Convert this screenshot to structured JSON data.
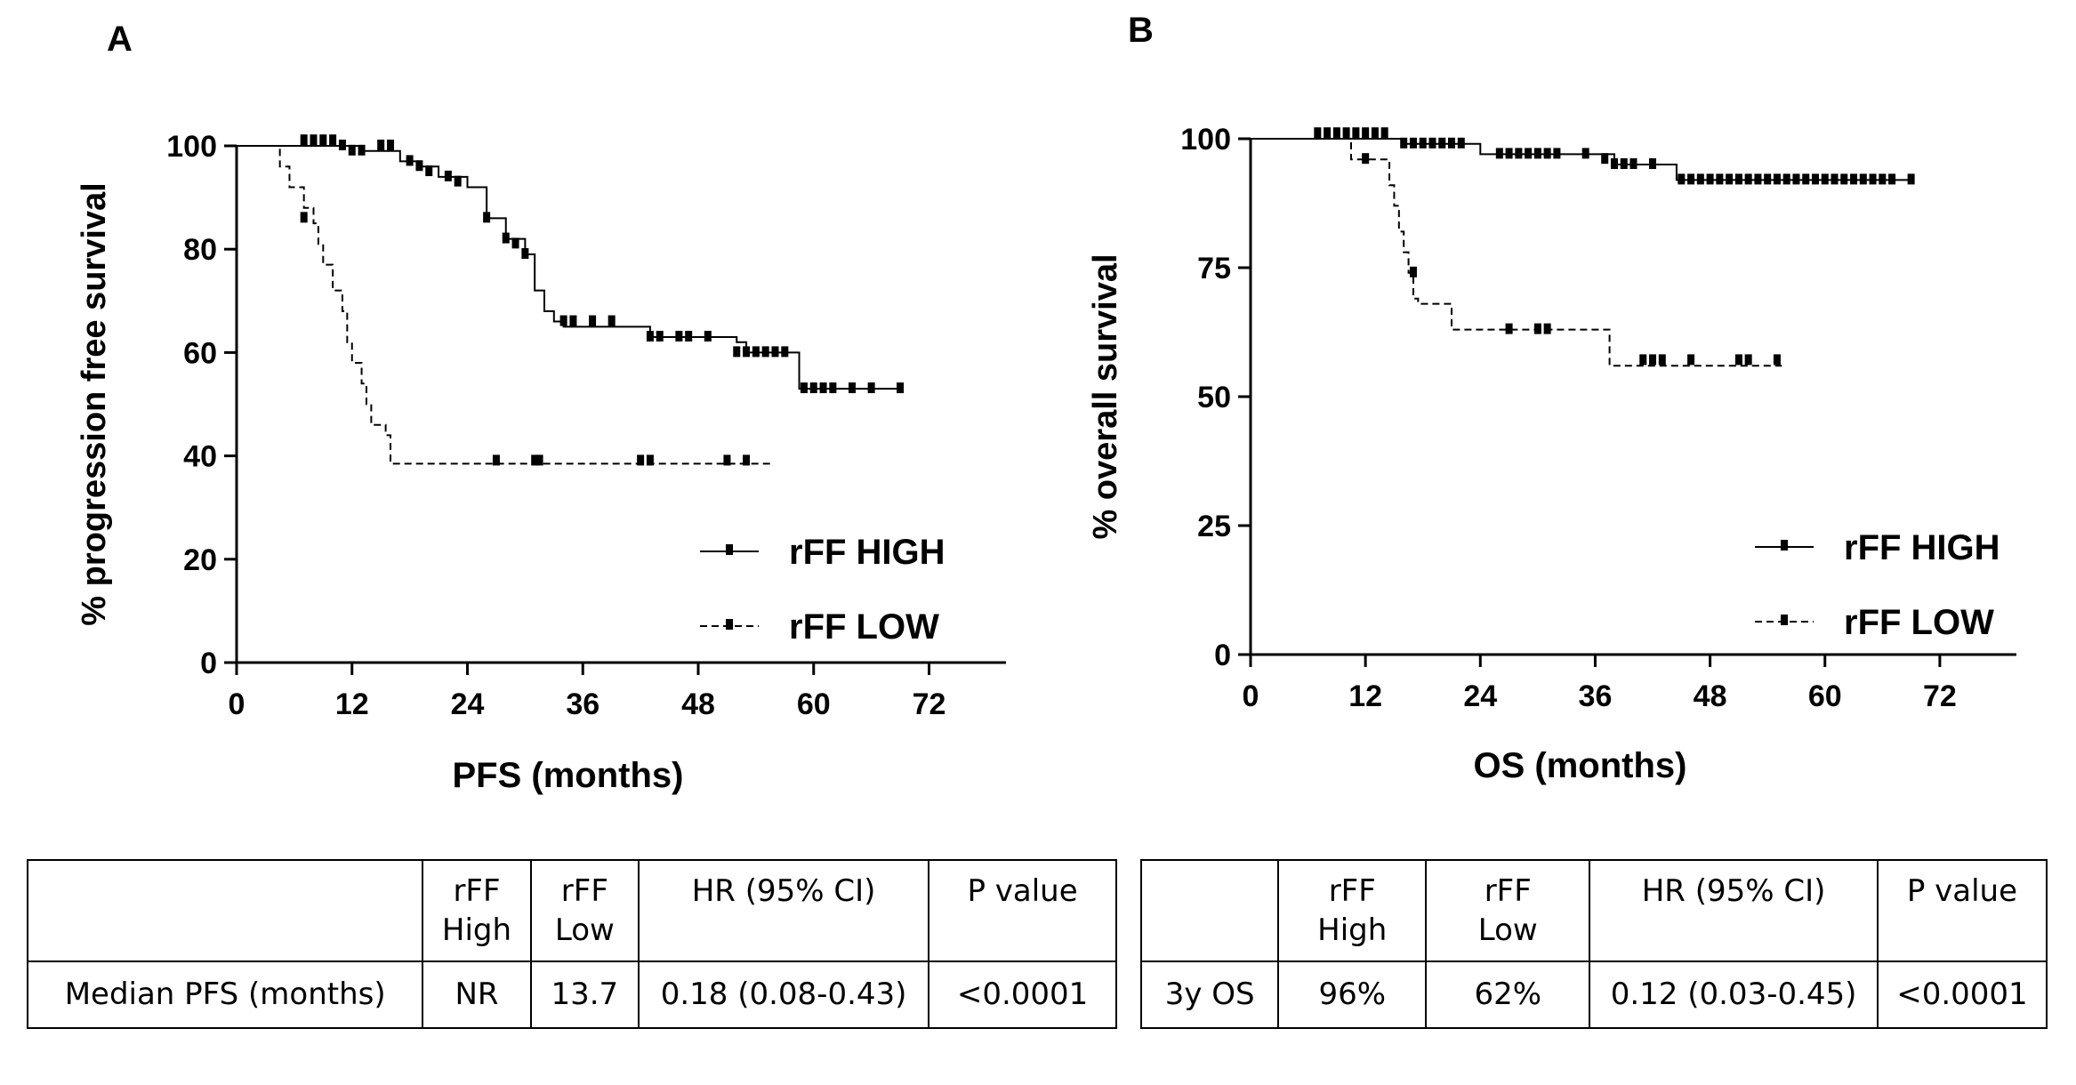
{
  "panels": {
    "a": "A",
    "b": "B"
  },
  "chart_data": [
    {
      "type": "line",
      "ylabel": "% progression free survival",
      "xlabel": "PFS (months)",
      "xlim": [
        0,
        80
      ],
      "ylim": [
        0,
        100
      ],
      "xticks": [
        0,
        12,
        24,
        36,
        48,
        60,
        72
      ],
      "yticks": [
        0,
        20,
        40,
        60,
        80,
        100
      ],
      "legend_position": "bottom-right",
      "series": [
        {
          "name": "rFF HIGH",
          "style": "solid",
          "steps": [
            [
              0,
              100
            ],
            [
              12,
              100
            ],
            [
              13,
              99
            ],
            [
              17,
              97
            ],
            [
              19,
              96
            ],
            [
              21,
              94
            ],
            [
              24,
              92
            ],
            [
              26,
              86
            ],
            [
              28,
              82
            ],
            [
              30,
              79
            ],
            [
              31,
              72
            ],
            [
              32,
              68
            ],
            [
              33,
              66
            ],
            [
              34,
              65
            ],
            [
              36,
              65
            ],
            [
              43,
              63
            ],
            [
              52,
              62
            ],
            [
              53,
              60
            ],
            [
              58,
              60
            ],
            [
              58.5,
              53
            ],
            [
              69,
              53
            ]
          ],
          "censored": [
            [
              7,
              101
            ],
            [
              8,
              101
            ],
            [
              9,
              101
            ],
            [
              10,
              101
            ],
            [
              11,
              100
            ],
            [
              12,
              99
            ],
            [
              13,
              99
            ],
            [
              15,
              100
            ],
            [
              16,
              100
            ],
            [
              18,
              97
            ],
            [
              19,
              96
            ],
            [
              20,
              95
            ],
            [
              22,
              94
            ],
            [
              23,
              93
            ],
            [
              26,
              86
            ],
            [
              28,
              82
            ],
            [
              29,
              81
            ],
            [
              30,
              79
            ],
            [
              34,
              66
            ],
            [
              35,
              66
            ],
            [
              37,
              66
            ],
            [
              39,
              66
            ],
            [
              43,
              63
            ],
            [
              44,
              63
            ],
            [
              46,
              63
            ],
            [
              47,
              63
            ],
            [
              49,
              63
            ],
            [
              52,
              60
            ],
            [
              53,
              60
            ],
            [
              54,
              60
            ],
            [
              55,
              60
            ],
            [
              56,
              60
            ],
            [
              57,
              60
            ],
            [
              59,
              53
            ],
            [
              60,
              53
            ],
            [
              61,
              53
            ],
            [
              62,
              53
            ],
            [
              64,
              53
            ],
            [
              66,
              53
            ],
            [
              69,
              53
            ]
          ]
        },
        {
          "name": "rFF LOW",
          "style": "dashed",
          "steps": [
            [
              0,
              100
            ],
            [
              4,
              100
            ],
            [
              4.5,
              96
            ],
            [
              5.5,
              92
            ],
            [
              7,
              88
            ],
            [
              8,
              85
            ],
            [
              8.5,
              81
            ],
            [
              9,
              77
            ],
            [
              10,
              72
            ],
            [
              11,
              68
            ],
            [
              11.5,
              62
            ],
            [
              12,
              58
            ],
            [
              13,
              54
            ],
            [
              13.5,
              50
            ],
            [
              14,
              46
            ],
            [
              15.5,
              44
            ],
            [
              16,
              38.5
            ],
            [
              55.5,
              38.5
            ]
          ],
          "censored": [
            [
              7,
              86
            ],
            [
              27,
              39
            ],
            [
              31,
              39
            ],
            [
              31.5,
              39
            ],
            [
              42,
              39
            ],
            [
              43,
              39
            ],
            [
              51,
              39
            ],
            [
              53,
              39
            ]
          ]
        }
      ]
    },
    {
      "type": "line",
      "ylabel": "% overall survival",
      "xlabel": "OS (months)",
      "xlim": [
        0,
        80
      ],
      "ylim": [
        0,
        100
      ],
      "xticks": [
        0,
        12,
        24,
        36,
        48,
        60,
        72
      ],
      "yticks": [
        0,
        25,
        50,
        75,
        100
      ],
      "legend_position": "bottom-right",
      "series": [
        {
          "name": "rFF HIGH",
          "style": "solid",
          "steps": [
            [
              0,
              100
            ],
            [
              15,
              100
            ],
            [
              16,
              99
            ],
            [
              22,
              99
            ],
            [
              24,
              97
            ],
            [
              37,
              97
            ],
            [
              38,
              95
            ],
            [
              44,
              95
            ],
            [
              44.5,
              92
            ],
            [
              69,
              92
            ]
          ],
          "censored": [
            [
              7,
              101
            ],
            [
              8,
              101
            ],
            [
              9,
              101
            ],
            [
              10,
              101
            ],
            [
              11,
              101
            ],
            [
              12,
              101
            ],
            [
              13,
              101
            ],
            [
              14,
              101
            ],
            [
              16,
              99
            ],
            [
              17,
              99
            ],
            [
              18,
              99
            ],
            [
              19,
              99
            ],
            [
              20,
              99
            ],
            [
              21,
              99
            ],
            [
              22,
              99
            ],
            [
              26,
              97
            ],
            [
              27,
              97
            ],
            [
              28,
              97
            ],
            [
              29,
              97
            ],
            [
              30,
              97
            ],
            [
              31,
              97
            ],
            [
              32,
              97
            ],
            [
              35,
              97
            ],
            [
              37,
              96
            ],
            [
              38,
              95
            ],
            [
              39,
              95
            ],
            [
              40,
              95
            ],
            [
              42,
              95
            ],
            [
              45,
              92
            ],
            [
              46,
              92
            ],
            [
              47,
              92
            ],
            [
              48,
              92
            ],
            [
              49,
              92
            ],
            [
              50,
              92
            ],
            [
              51,
              92
            ],
            [
              52,
              92
            ],
            [
              53,
              92
            ],
            [
              54,
              92
            ],
            [
              55,
              92
            ],
            [
              56,
              92
            ],
            [
              57,
              92
            ],
            [
              58,
              92
            ],
            [
              59,
              92
            ],
            [
              60,
              92
            ],
            [
              61,
              92
            ],
            [
              62,
              92
            ],
            [
              63,
              92
            ],
            [
              64,
              92
            ],
            [
              65,
              92
            ],
            [
              66,
              92
            ],
            [
              67,
              92
            ],
            [
              69,
              92
            ]
          ]
        },
        {
          "name": "rFF LOW",
          "style": "dashed",
          "steps": [
            [
              0,
              100
            ],
            [
              10,
              100
            ],
            [
              10.5,
              96
            ],
            [
              14,
              96
            ],
            [
              14.5,
              91
            ],
            [
              15,
              87
            ],
            [
              15.5,
              82
            ],
            [
              16,
              78
            ],
            [
              16.5,
              74
            ],
            [
              17,
              69
            ],
            [
              17.5,
              68
            ],
            [
              20,
              68
            ],
            [
              21,
              63
            ],
            [
              37,
              63
            ],
            [
              37.5,
              56
            ],
            [
              55.5,
              56
            ]
          ],
          "censored": [
            [
              12,
              96
            ],
            [
              17,
              74
            ],
            [
              27,
              63
            ],
            [
              30,
              63
            ],
            [
              31,
              63
            ],
            [
              41,
              57
            ],
            [
              42,
              57
            ],
            [
              43,
              57
            ],
            [
              46,
              57
            ],
            [
              51,
              57
            ],
            [
              52,
              57
            ],
            [
              55,
              57
            ]
          ]
        }
      ]
    }
  ],
  "tables": [
    {
      "headers": [
        "",
        "rFF\nHigh",
        "rFF\nLow",
        "HR (95% CI)",
        "P value"
      ],
      "row": [
        "Median PFS (months)",
        "NR",
        "13.7",
        "0.18 (0.08-0.43)",
        "<0.0001"
      ]
    },
    {
      "headers": [
        "",
        "rFF\nHigh",
        "rFF\nLow",
        "HR (95% CI)",
        "P value"
      ],
      "row": [
        "3y OS",
        "96%",
        "62%",
        "0.12 (0.03-0.45)",
        "<0.0001"
      ]
    }
  ]
}
